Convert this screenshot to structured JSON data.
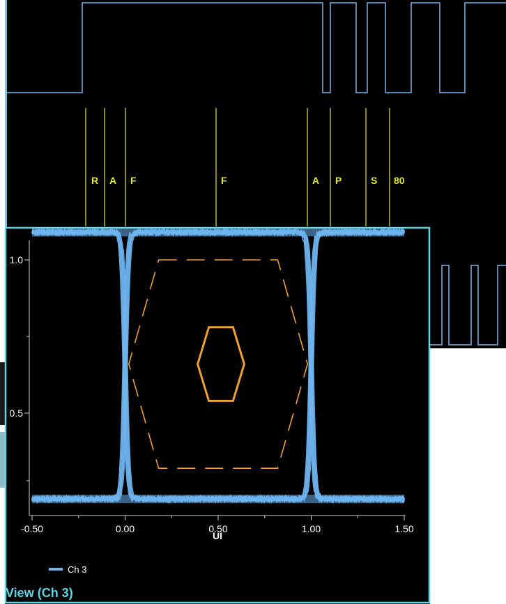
{
  "colors": {
    "background": "#000000",
    "trace": "#6eb4ee",
    "logic": "#7ab6ea",
    "marker": "#e6e62e",
    "mask": "#f0a030",
    "frame": "#5ed6e6",
    "axis_text": "#ffffff",
    "title_text": "#5ed6e6",
    "side_panel": "#8ebcc8"
  },
  "top_panel": {
    "markers": [
      {
        "label": "R"
      },
      {
        "label": "A"
      },
      {
        "label": "F"
      },
      {
        "label": "F"
      },
      {
        "label": "A"
      },
      {
        "label": "P"
      },
      {
        "label": "S"
      },
      {
        "label": "80"
      }
    ]
  },
  "eye_panel": {
    "title": "View (Ch 3)",
    "legend": {
      "name": "Ch 3"
    }
  },
  "chart_data": {
    "type": "line",
    "title": "",
    "xlabel": "UI",
    "ylabel": "",
    "xlim": [
      -0.5,
      1.5
    ],
    "x_ticks": [
      "-0.50",
      "0.00",
      "0.50",
      "1.00",
      "1.50"
    ],
    "y_ticks": [
      "1.0",
      "0.5"
    ],
    "grid": false,
    "legend": "bottom-left",
    "series": [
      {
        "name": "Ch 3",
        "kind": "eye-diagram",
        "high_level": 1.09,
        "low_level": 0.22,
        "crossings_ui": [
          0.0,
          1.0
        ]
      }
    ],
    "mask": {
      "inner_polygon_ui": [
        [
          0.45,
          0.78
        ],
        [
          0.58,
          0.78
        ],
        [
          0.64,
          0.66
        ],
        [
          0.58,
          0.54
        ],
        [
          0.45,
          0.54
        ],
        [
          0.39,
          0.66
        ]
      ],
      "outer_polygon_ui": [
        [
          0.18,
          1.0
        ],
        [
          0.82,
          1.0
        ],
        [
          0.98,
          0.66
        ],
        [
          0.82,
          0.32
        ],
        [
          0.18,
          0.32
        ],
        [
          0.02,
          0.66
        ]
      ]
    }
  }
}
